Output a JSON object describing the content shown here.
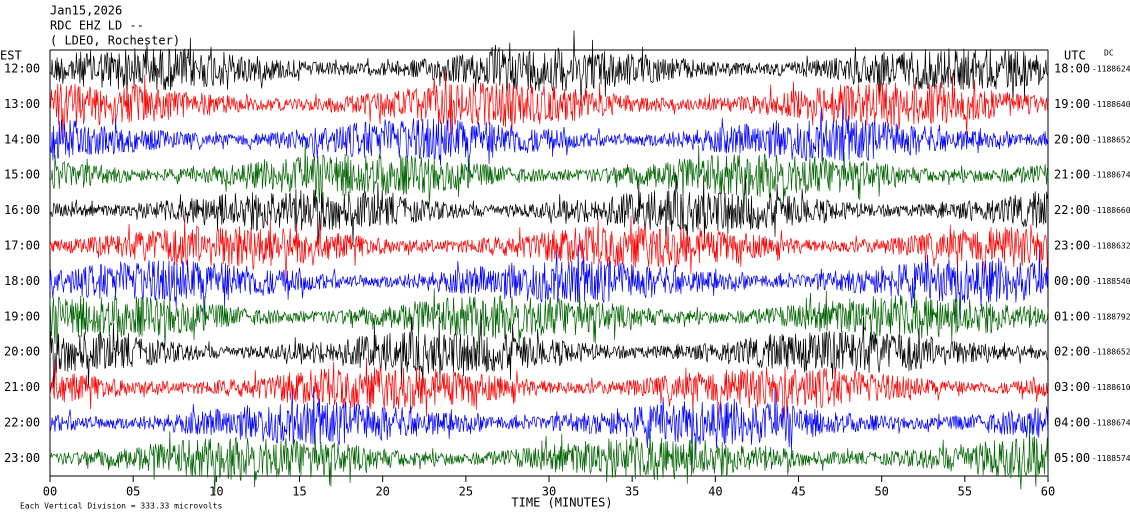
{
  "chart_data": {
    "type": "helicorder",
    "title": "Jan15,2026",
    "subtitle": "RDC EHZ LD --",
    "station": "( LDEO, Rochester)",
    "left_axis_label": "EST",
    "right_axis_label": "UTC",
    "dc_label": "DC",
    "x_label": "TIME (MINUTES)",
    "footer": "Each Vertical Division =  333.33 microvolts",
    "xlim": [
      0,
      60
    ],
    "xticks": [
      {
        "value": 0,
        "label": "00"
      },
      {
        "value": 5,
        "label": "05"
      },
      {
        "value": 10,
        "label": "10"
      },
      {
        "value": 15,
        "label": "15"
      },
      {
        "value": 20,
        "label": "20"
      },
      {
        "value": 25,
        "label": "25"
      },
      {
        "value": 30,
        "label": "30"
      },
      {
        "value": 35,
        "label": "35"
      },
      {
        "value": 40,
        "label": "40"
      },
      {
        "value": 45,
        "label": "45"
      },
      {
        "value": 50,
        "label": "50"
      },
      {
        "value": 55,
        "label": "55"
      },
      {
        "value": 60,
        "label": "60"
      }
    ],
    "categories": [
      "12:00",
      "13:00",
      "14:00",
      "15:00",
      "16:00",
      "17:00",
      "18:00",
      "19:00",
      "20:00",
      "21:00",
      "22:00",
      "23:00"
    ],
    "utc_labels": [
      "18:00",
      "19:00",
      "20:00",
      "21:00",
      "22:00",
      "23:00",
      "00:00",
      "01:00",
      "02:00",
      "03:00",
      "04:00",
      "05:00"
    ],
    "dc_values": [
      "-1188624",
      "-1188640",
      "-1188652",
      "-1188674",
      "-1188660",
      "-1188632",
      "-1188540",
      "-1188792",
      "-1188652",
      "-1188610",
      "-1188674",
      "-1188574"
    ],
    "colors": [
      "#000000",
      "#ff0000",
      "#0000ff",
      "#006400"
    ]
  }
}
